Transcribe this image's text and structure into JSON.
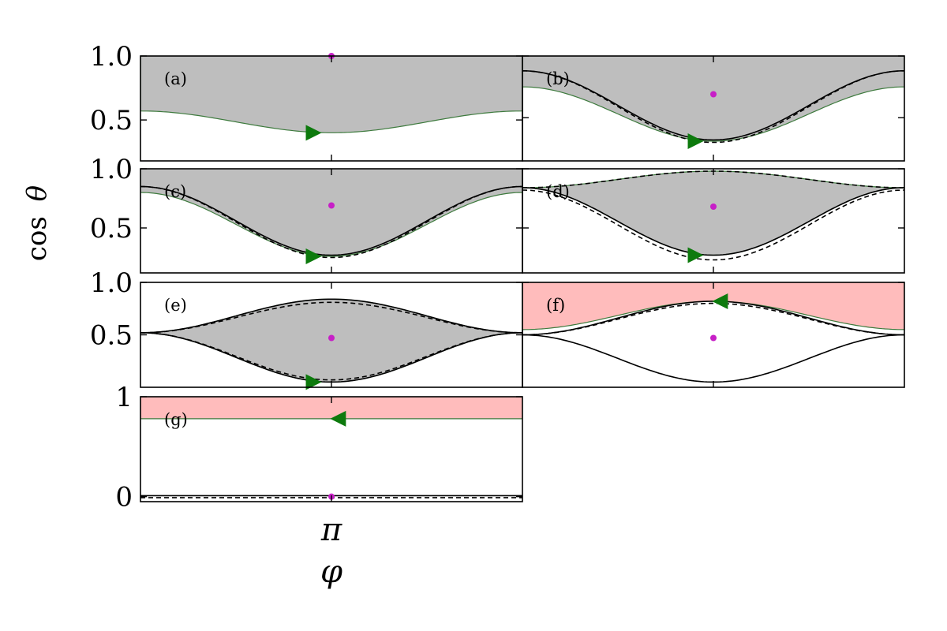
{
  "chart_data": {
    "type": "area",
    "xlabel": "φ",
    "ylabel_text": "cos",
    "ylabel_symbol": "θ",
    "x_tick_label": "π",
    "x_tick_value": 3.14159,
    "xlim": [
      0,
      6.28318
    ],
    "colors": {
      "gray_region": "#bebebe",
      "pink_region": "#ffbcbc",
      "boundary_green": "#3d7a3d",
      "arrow_green": "#0d7a0d",
      "marker_magenta": "#c71fc7",
      "curve_black": "#000000"
    },
    "panels": [
      {
        "label": "(a)",
        "ylim": [
          0.18,
          1.0
        ],
        "yticks": [
          "0.5",
          "1.0"
        ],
        "ytick_values": [
          0.5,
          1.0
        ],
        "region": "gray-above",
        "region_color": "gray",
        "boundary": {
          "kind": "cos",
          "edge": 0.57,
          "center": 0.4
        },
        "arrow": {
          "direction": "right",
          "x": 2.85,
          "y": 0.4
        },
        "marker": {
          "x": 3.14159,
          "y": 1.0
        },
        "curves": []
      },
      {
        "label": "(b)",
        "ylim": [
          0.15,
          1.0
        ],
        "yticks": [],
        "ytick_values": [],
        "region": "gray-above",
        "region_color": "gray",
        "boundary": {
          "kind": "cos",
          "edge": 0.75,
          "center": 0.31
        },
        "arrow": {
          "direction": "right",
          "x": 2.85,
          "y": 0.31
        },
        "marker": {
          "x": 3.14159,
          "y": 0.69
        },
        "curves": [
          {
            "kind": "cos",
            "edge": 0.88,
            "center": 0.32,
            "style": "solid"
          },
          {
            "kind": "cos",
            "edge": 0.88,
            "center": 0.3,
            "style": "dashed"
          }
        ]
      },
      {
        "label": "(c)",
        "ylim": [
          0.12,
          1.0
        ],
        "yticks": [
          "0.5",
          "1.0"
        ],
        "ytick_values": [
          0.5,
          1.0
        ],
        "region": "gray-above",
        "region_color": "gray",
        "boundary": {
          "kind": "cos",
          "edge": 0.8,
          "center": 0.26
        },
        "arrow": {
          "direction": "right",
          "x": 2.85,
          "y": 0.26
        },
        "marker": {
          "x": 3.14159,
          "y": 0.69
        },
        "curves": [
          {
            "kind": "cos",
            "edge": 0.85,
            "center": 0.27,
            "style": "solid"
          },
          {
            "kind": "cos",
            "edge": 0.85,
            "center": 0.25,
            "style": "dashed"
          }
        ]
      },
      {
        "label": "(d)",
        "ylim": [
          0.12,
          1.0
        ],
        "yticks": [],
        "ytick_values": [],
        "region": "gray-lens",
        "region_color": "gray",
        "boundary": {
          "kind": "lens",
          "edge": 0.84,
          "top": 0.98,
          "center": 0.27
        },
        "arrow": {
          "direction": "right",
          "x": 2.85,
          "y": 0.27
        },
        "marker": {
          "x": 3.14159,
          "y": 0.68
        },
        "curves": [
          {
            "kind": "cos",
            "edge": 0.84,
            "center": 0.27,
            "style": "solid"
          },
          {
            "kind": "cos",
            "edge": 0.82,
            "center": 0.23,
            "style": "dashed"
          },
          {
            "kind": "cos",
            "edge": 0.84,
            "center": 0.98,
            "style": "dashed"
          }
        ]
      },
      {
        "label": "(e)",
        "ylim": [
          0.0,
          1.0
        ],
        "yticks": [
          "0.5",
          "1.0"
        ],
        "ytick_values": [
          0.5,
          1.0
        ],
        "region": "gray-lens",
        "region_color": "gray",
        "boundary": {
          "kind": "lens",
          "edge": 0.52,
          "top": 0.84,
          "center": 0.05
        },
        "arrow": {
          "direction": "right",
          "x": 2.85,
          "y": 0.05
        },
        "marker": {
          "x": 3.14159,
          "y": 0.47
        },
        "curves": [
          {
            "kind": "cos",
            "edge": 0.52,
            "center": 0.84,
            "style": "solid"
          },
          {
            "kind": "cos",
            "edge": 0.52,
            "center": 0.81,
            "style": "dashed"
          },
          {
            "kind": "cos",
            "edge": 0.52,
            "center": 0.05,
            "style": "solid"
          },
          {
            "kind": "cos",
            "edge": 0.52,
            "center": 0.07,
            "style": "dashed"
          }
        ]
      },
      {
        "label": "(f)",
        "ylim": [
          0.0,
          1.0
        ],
        "yticks": [],
        "ytick_values": [],
        "region": "pink-above",
        "region_color": "pink",
        "boundary": {
          "kind": "cos",
          "edge": 0.55,
          "center": 0.82
        },
        "arrow": {
          "direction": "left",
          "x": 3.25,
          "y": 0.82
        },
        "marker": {
          "x": 3.14159,
          "y": 0.47
        },
        "curves": [
          {
            "kind": "cos",
            "edge": 0.5,
            "center": 0.82,
            "style": "solid"
          },
          {
            "kind": "cos",
            "edge": 0.5,
            "center": 0.8,
            "style": "dashed"
          },
          {
            "kind": "cos",
            "edge": 0.5,
            "center": 0.05,
            "style": "solid"
          }
        ]
      },
      {
        "label": "(g)",
        "ylim": [
          -0.05,
          1.0
        ],
        "yticks": [
          "0",
          "1"
        ],
        "ytick_values": [
          0,
          1
        ],
        "region": "pink-above",
        "region_color": "pink",
        "boundary": {
          "kind": "flat",
          "edge": 0.78,
          "center": 0.78
        },
        "arrow": {
          "direction": "left",
          "x": 3.25,
          "y": 0.78
        },
        "marker": {
          "x": 3.14159,
          "y": 0.0
        },
        "curves": [
          {
            "kind": "flat",
            "edge": 0.01,
            "center": 0.01,
            "style": "solid"
          },
          {
            "kind": "flat",
            "edge": -0.01,
            "center": -0.01,
            "style": "dashed"
          }
        ]
      }
    ]
  }
}
